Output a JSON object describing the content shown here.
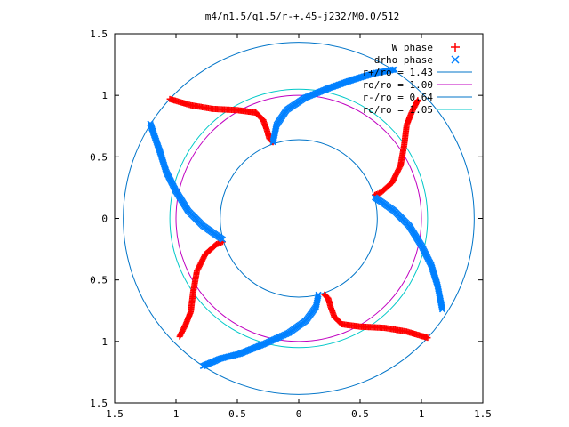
{
  "chart_data": {
    "type": "scatter",
    "title": "m4/n1.5/q1.5/r-+.45-j232/M0.0/512",
    "xlabel": "",
    "ylabel": "",
    "xlim": [
      -1.5,
      1.5
    ],
    "ylim": [
      -1.5,
      1.5
    ],
    "x_ticks": [
      -1.5,
      -1,
      -0.5,
      0,
      0.5,
      1,
      1.5
    ],
    "y_ticks": [
      1.5,
      1,
      0.5,
      0,
      -0.5,
      -1,
      -1.5
    ],
    "x_tick_labels": [
      "1.5",
      "1",
      "0.5",
      "0",
      "0.5",
      "1",
      "1.5"
    ],
    "y_tick_labels": [
      "1.5",
      "1",
      "0.5",
      "0",
      "0.5",
      "1",
      "1.5"
    ],
    "grid": false,
    "legend_position": "top-right",
    "colors": {
      "w_phase": "#ff0000",
      "drho_phase": "#0080ff",
      "r_plus": "#0074c8",
      "r0": "#c000c0",
      "r_minus": "#0074c8",
      "rc": "#00c8c8"
    },
    "series": [
      {
        "name": "W phase",
        "marker": "+",
        "arms": [
          [
            [
              -0.21,
              0.62
            ],
            [
              -0.24,
              0.65
            ],
            [
              -0.26,
              0.72
            ],
            [
              -0.29,
              0.8
            ],
            [
              -0.35,
              0.86
            ],
            [
              -0.5,
              0.88
            ],
            [
              -0.7,
              0.89
            ],
            [
              -0.88,
              0.92
            ],
            [
              -1.05,
              0.97
            ]
          ],
          [
            [
              0.62,
              0.19
            ],
            [
              0.67,
              0.21
            ],
            [
              0.76,
              0.29
            ],
            [
              0.83,
              0.43
            ],
            [
              0.86,
              0.6
            ],
            [
              0.88,
              0.76
            ],
            [
              0.92,
              0.86
            ],
            [
              0.97,
              0.96
            ]
          ]
        ]
      },
      {
        "name": "drho phase",
        "marker": "x",
        "arms": [
          [
            [
              -0.21,
              0.62
            ],
            [
              -0.18,
              0.76
            ],
            [
              -0.1,
              0.88
            ],
            [
              0.05,
              0.98
            ],
            [
              0.25,
              1.06
            ],
            [
              0.45,
              1.13
            ],
            [
              0.62,
              1.18
            ],
            [
              0.78,
              1.21
            ]
          ],
          [
            [
              0.62,
              0.17
            ],
            [
              0.68,
              0.13
            ],
            [
              0.78,
              0.06
            ],
            [
              0.9,
              -0.06
            ],
            [
              1.0,
              -0.22
            ],
            [
              1.08,
              -0.38
            ],
            [
              1.13,
              -0.54
            ],
            [
              1.17,
              -0.74
            ]
          ],
          [
            [
              -0.62,
              -0.17
            ],
            [
              -0.68,
              -0.13
            ],
            [
              -0.78,
              -0.06
            ],
            [
              -0.9,
              0.06
            ],
            [
              -1.0,
              0.22
            ],
            [
              -1.08,
              0.38
            ],
            [
              -1.13,
              0.54
            ],
            [
              -1.21,
              0.77
            ]
          ],
          [
            [
              0.16,
              -0.62
            ],
            [
              0.14,
              -0.72
            ],
            [
              0.06,
              -0.83
            ],
            [
              -0.08,
              -0.93
            ],
            [
              -0.28,
              -1.02
            ],
            [
              -0.48,
              -1.1
            ],
            [
              -0.64,
              -1.14
            ],
            [
              -0.78,
              -1.2
            ]
          ]
        ]
      }
    ],
    "circles": [
      {
        "label": "r+/ro = 1.43",
        "r": 1.43
      },
      {
        "label": "ro/ro = 1.00",
        "r": 1.0
      },
      {
        "label": "r-/ro = 0.64",
        "r": 0.64
      },
      {
        "label": "rc/ro = 1.05",
        "r": 1.05
      }
    ],
    "legend": [
      {
        "label": "W phase",
        "key": "w_phase",
        "kind": "+"
      },
      {
        "label": "drho phase",
        "key": "drho_phase",
        "kind": "x"
      },
      {
        "label": "r+/ro = 1.43",
        "key": "r_plus",
        "kind": "line"
      },
      {
        "label": "ro/ro = 1.00",
        "key": "r0",
        "kind": "line"
      },
      {
        "label": "r-/ro = 0.64",
        "key": "r_minus",
        "kind": "line"
      },
      {
        "label": "rc/ro = 1.05",
        "key": "rc",
        "kind": "line"
      }
    ]
  }
}
